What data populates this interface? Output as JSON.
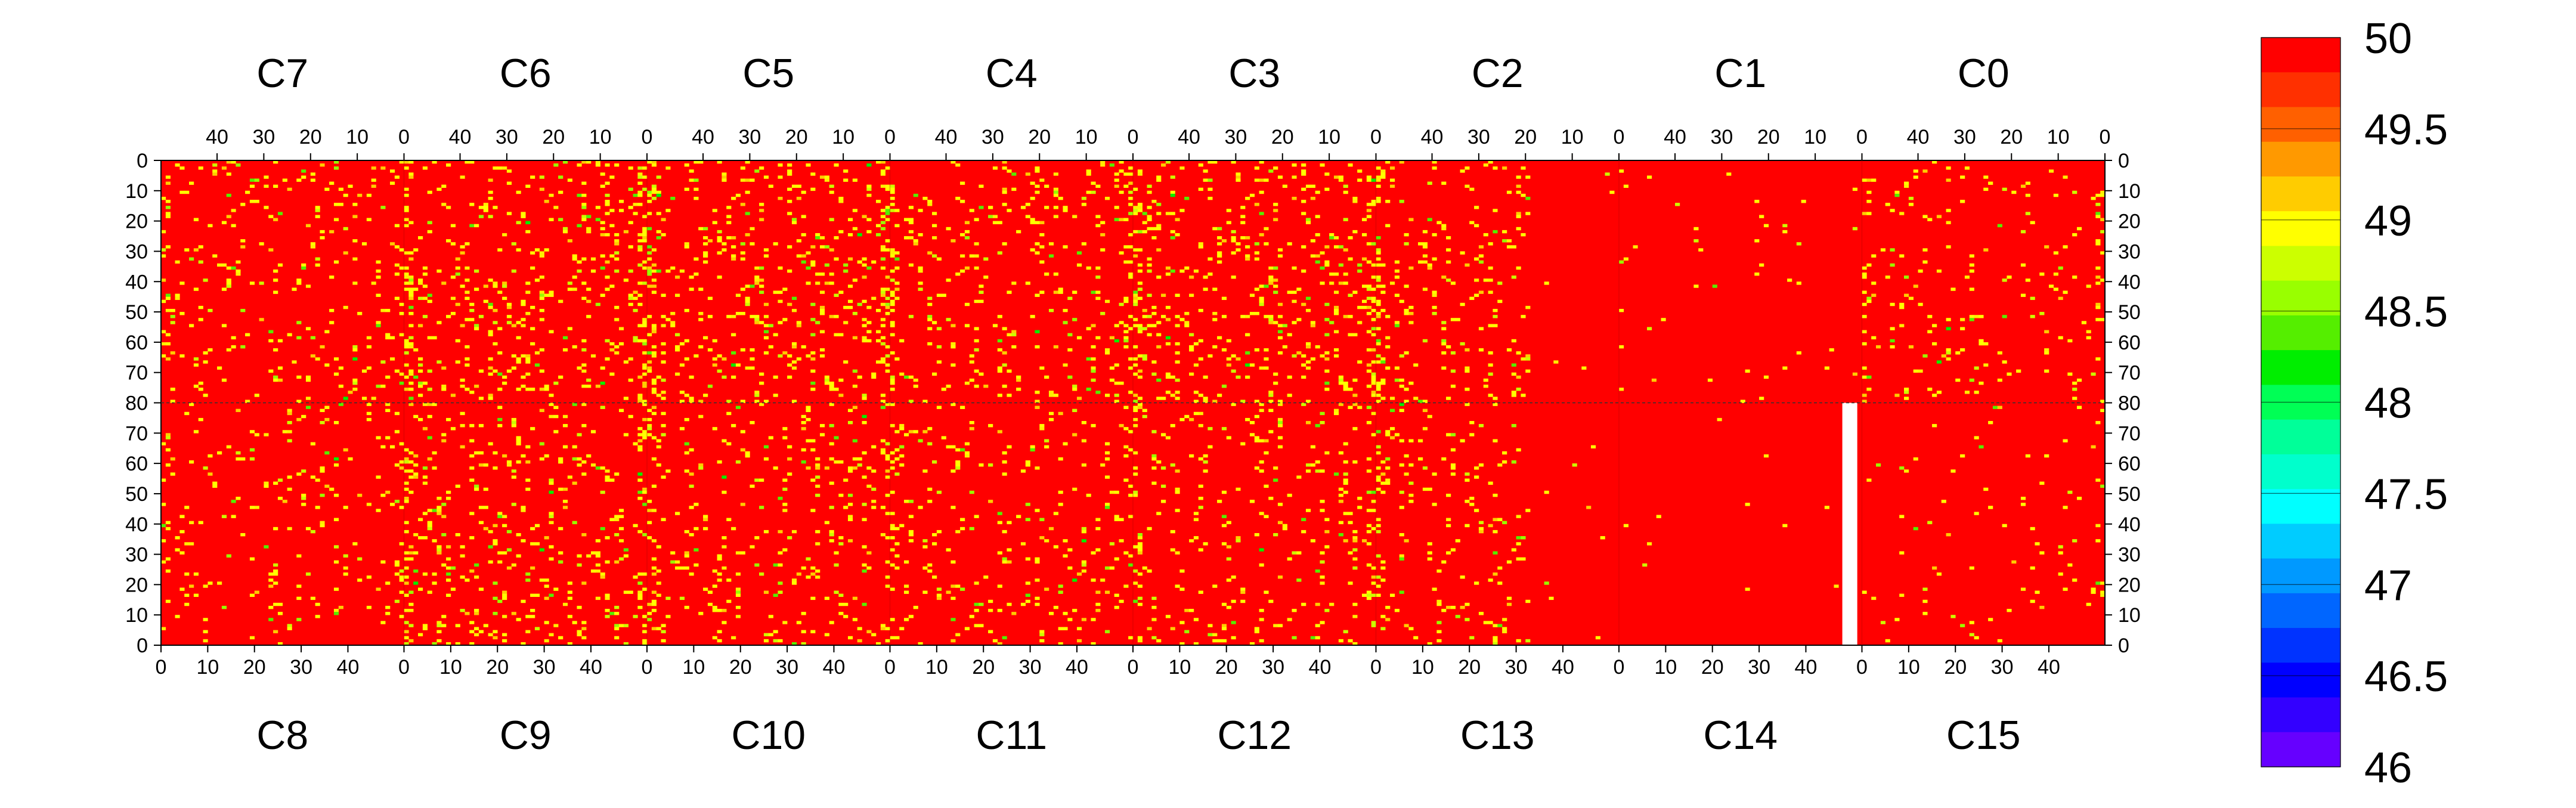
{
  "chart_data": {
    "type": "heatmap",
    "title": "",
    "xlabel": "",
    "ylabel": "",
    "top_row_chips": [
      "C7",
      "C6",
      "C5",
      "C4",
      "C3",
      "C2",
      "C1",
      "C0"
    ],
    "bottom_row_chips": [
      "C8",
      "C9",
      "C10",
      "C11",
      "C12",
      "C13",
      "C14",
      "C15"
    ],
    "columns_per_chip": 52,
    "rows_per_half": 80,
    "x_ticks_top": [
      "40",
      "30",
      "20",
      "10",
      "0"
    ],
    "x_ticks_bottom": [
      "0",
      "10",
      "20",
      "30",
      "40"
    ],
    "y_ticks_top": [
      "0",
      "10",
      "20",
      "30",
      "40",
      "50",
      "60",
      "70",
      "80"
    ],
    "y_ticks_bottom": [
      "70",
      "60",
      "50",
      "40",
      "30",
      "20",
      "10",
      "0"
    ],
    "value_range": [
      46,
      50
    ],
    "dominant_value": 50,
    "colorbar_ticks": [
      "50",
      "49.5",
      "49",
      "48.5",
      "48",
      "47.5",
      "47",
      "46.5",
      "46"
    ],
    "colorbar_colors": [
      "#ff0000",
      "#ff3000",
      "#ff6000",
      "#ff9900",
      "#ffcc00",
      "#ffff00",
      "#ccff00",
      "#99ff00",
      "#55ee00",
      "#00ee00",
      "#00ff55",
      "#00ff99",
      "#00ffcc",
      "#00ffff",
      "#00ccff",
      "#0099ff",
      "#0066ff",
      "#0033ff",
      "#0000ff",
      "#3300ff",
      "#6600ff"
    ],
    "activity_by_chip_column": {
      "top": [
        0.05,
        0.09,
        0.09,
        0.07,
        0.09,
        0.07,
        0.008,
        0.04
      ],
      "bottom": [
        0.04,
        0.08,
        0.06,
        0.05,
        0.06,
        0.05,
        0.005,
        0.015
      ]
    },
    "blank_region": {
      "half": "bottom",
      "chip_column": 6,
      "columns_from_right": [
        1,
        3
      ]
    },
    "grid": false
  }
}
